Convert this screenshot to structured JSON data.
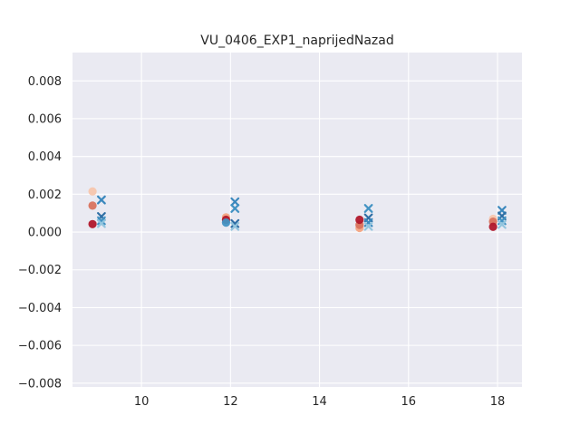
{
  "chart_data": {
    "type": "scatter",
    "title": "VU_0406_EXP1_naprijedNazad",
    "xlabel": "",
    "ylabel": "",
    "xlim": [
      8.45,
      18.55
    ],
    "ylim": [
      -0.0082,
      0.0095
    ],
    "grid": true,
    "background": "#eaeaf2",
    "grid_color": "#ffffff",
    "x_ticks": [
      10,
      12,
      14,
      16,
      18
    ],
    "x_tick_labels": [
      "10",
      "12",
      "14",
      "16",
      "18"
    ],
    "y_ticks": [
      -0.008,
      -0.006,
      -0.004,
      -0.002,
      0.0,
      0.002,
      0.004,
      0.006,
      0.008
    ],
    "y_tick_labels": [
      "−0.008",
      "−0.006",
      "−0.004",
      "−0.002",
      "0.000",
      "0.002",
      "0.004",
      "0.006",
      "0.008"
    ],
    "series": [
      {
        "marker": "circle",
        "points": [
          {
            "x": 8.9,
            "y": 0.00215,
            "color": "#f7c6ad"
          },
          {
            "x": 8.9,
            "y": 0.0014,
            "color": "#d9735e"
          },
          {
            "x": 8.9,
            "y": 0.00042,
            "color": "#b1182b"
          },
          {
            "x": 11.9,
            "y": 0.00078,
            "color": "#f4a582"
          },
          {
            "x": 11.9,
            "y": 0.00065,
            "color": "#b1182b"
          },
          {
            "x": 11.9,
            "y": 0.0005,
            "color": "#4393c3"
          },
          {
            "x": 14.9,
            "y": 0.00022,
            "color": "#f4a582"
          },
          {
            "x": 14.9,
            "y": 0.00038,
            "color": "#d9735e"
          },
          {
            "x": 14.9,
            "y": 0.00065,
            "color": "#b1182b"
          },
          {
            "x": 17.9,
            "y": 0.0007,
            "color": "#f7c6ad"
          },
          {
            "x": 17.9,
            "y": 0.00055,
            "color": "#d9735e"
          },
          {
            "x": 17.9,
            "y": 0.00028,
            "color": "#b1182b"
          }
        ]
      },
      {
        "marker": "x",
        "points": [
          {
            "x": 9.1,
            "y": 0.0017,
            "color": "#3b88bd"
          },
          {
            "x": 9.1,
            "y": 0.00082,
            "color": "#2f6fa5"
          },
          {
            "x": 9.1,
            "y": 0.0006,
            "color": "#4393c3"
          },
          {
            "x": 9.1,
            "y": 0.00045,
            "color": "#92c5de"
          },
          {
            "x": 12.1,
            "y": 0.0016,
            "color": "#3b88bd"
          },
          {
            "x": 12.1,
            "y": 0.00125,
            "color": "#4393c3"
          },
          {
            "x": 12.1,
            "y": 0.00045,
            "color": "#2f6fa5"
          },
          {
            "x": 12.1,
            "y": 0.0003,
            "color": "#92c5de"
          },
          {
            "x": 15.1,
            "y": 0.00125,
            "color": "#4393c3"
          },
          {
            "x": 15.1,
            "y": 0.00075,
            "color": "#2f6fa5"
          },
          {
            "x": 15.1,
            "y": 0.0005,
            "color": "#3b88bd"
          },
          {
            "x": 15.1,
            "y": 0.0003,
            "color": "#92c5de"
          },
          {
            "x": 18.1,
            "y": 0.00115,
            "color": "#3b88bd"
          },
          {
            "x": 18.1,
            "y": 0.00085,
            "color": "#2f6fa5"
          },
          {
            "x": 18.1,
            "y": 0.0006,
            "color": "#4393c3"
          },
          {
            "x": 18.1,
            "y": 0.0004,
            "color": "#92c5de"
          }
        ]
      }
    ]
  }
}
